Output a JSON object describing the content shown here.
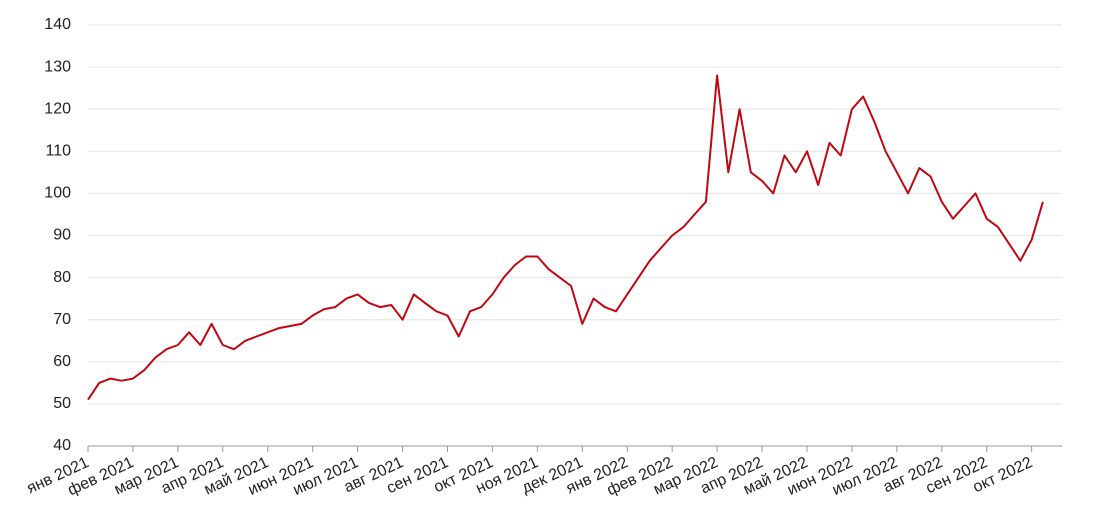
{
  "chart_data": {
    "type": "line",
    "categories": [
      "янв 2021",
      null,
      null,
      null,
      "фев 2021",
      null,
      null,
      null,
      "мар 2021",
      null,
      null,
      null,
      "апр 2021",
      null,
      null,
      null,
      "май 2021",
      null,
      null,
      null,
      "июн 2021",
      null,
      null,
      null,
      "июл 2021",
      null,
      null,
      null,
      "авг 2021",
      null,
      null,
      null,
      "сен 2021",
      null,
      null,
      null,
      "окт 2021",
      null,
      null,
      null,
      "ноя 2021",
      null,
      null,
      null,
      "дек 2021",
      null,
      null,
      null,
      "янв 2022",
      null,
      null,
      null,
      "фев 2022",
      null,
      null,
      null,
      "мар 2022",
      null,
      null,
      null,
      "апр 2022",
      null,
      null,
      null,
      "май 2022",
      null,
      null,
      null,
      "июн 2022",
      null,
      null,
      null,
      "июл 2022",
      null,
      null,
      null,
      "авг 2022",
      null,
      null,
      null,
      "сен 2022",
      null,
      null,
      null,
      "окт 2022",
      null
    ],
    "values": [
      51,
      55,
      56,
      55.5,
      56,
      58,
      61,
      63,
      64,
      67,
      64,
      69,
      64,
      63,
      65,
      66,
      67,
      68,
      68.5,
      69,
      71,
      72.5,
      73,
      75,
      76,
      74,
      73,
      73.5,
      70,
      76,
      74,
      72,
      71,
      66,
      72,
      73,
      76,
      80,
      83,
      85,
      85,
      82,
      80,
      78,
      69,
      75,
      73,
      72,
      76,
      80,
      84,
      87,
      90,
      92,
      95,
      98,
      128,
      105,
      120,
      105,
      103,
      100,
      109,
      105,
      110,
      102,
      112,
      109,
      120,
      123,
      117,
      110,
      105,
      100,
      106,
      104,
      98,
      94,
      97,
      100,
      94,
      92,
      88,
      84,
      89,
      98
    ],
    "color": "#c00812",
    "ylim": [
      40,
      140
    ],
    "yticks": [
      40,
      50,
      60,
      70,
      80,
      90,
      100,
      110,
      120,
      130,
      140
    ],
    "grid": true
  }
}
